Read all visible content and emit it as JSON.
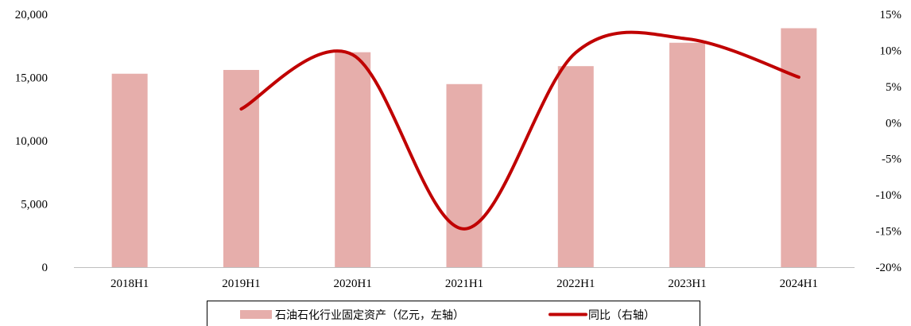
{
  "chart_data": {
    "type": "bar+line",
    "categories": [
      "2018H1",
      "2019H1",
      "2020H1",
      "2021H1",
      "2022H1",
      "2023H1",
      "2024H1"
    ],
    "series": [
      {
        "name": "石油石化行业固定资产（亿元，左轴）",
        "type": "bar",
        "axis": "left",
        "color": "#e6aeab",
        "values": [
          15300,
          15600,
          17000,
          14480,
          15900,
          17750,
          18900
        ]
      },
      {
        "name": "同比（右轴）",
        "type": "line",
        "axis": "right",
        "color": "#c00000",
        "values": [
          null,
          1.9,
          9.4,
          -14.7,
          9.7,
          11.6,
          6.3
        ]
      }
    ],
    "left_axis": {
      "ylim": [
        0,
        20000
      ],
      "ticks": [
        0,
        5000,
        10000,
        15000,
        20000
      ],
      "tick_labels": [
        "0",
        "5,000",
        "10,000",
        "15,000",
        "20,000"
      ]
    },
    "right_axis": {
      "ylim": [
        -20,
        15
      ],
      "ticks": [
        -20,
        -15,
        -10,
        -5,
        0,
        5,
        10,
        15
      ],
      "tick_labels": [
        "-20%",
        "-15%",
        "-10%",
        "-5%",
        "0%",
        "5%",
        "10%",
        "15%"
      ]
    },
    "grid": false,
    "legend_position": "bottom"
  }
}
